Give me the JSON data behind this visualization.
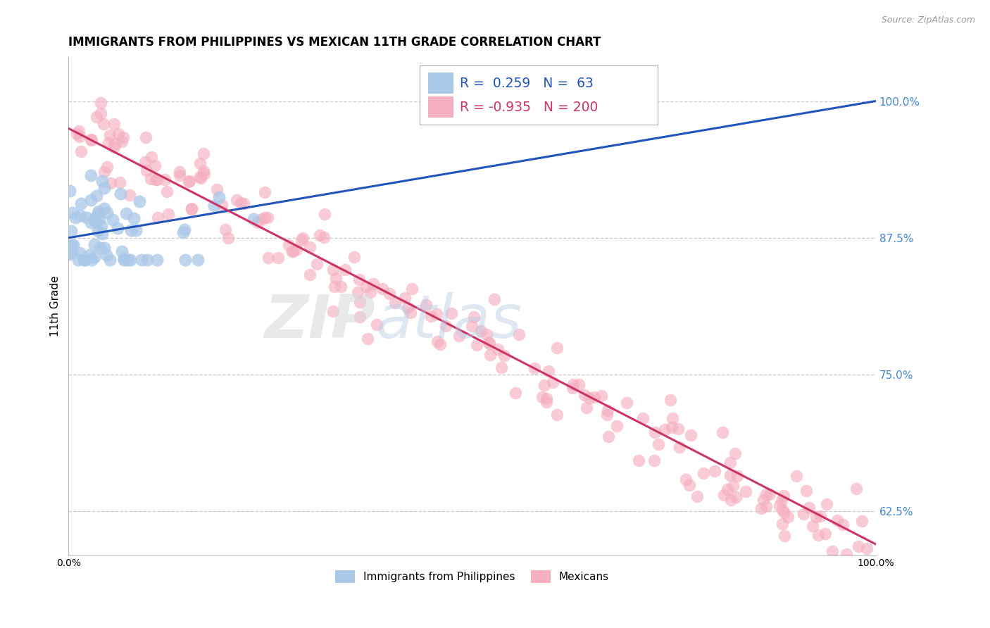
{
  "title": "IMMIGRANTS FROM PHILIPPINES VS MEXICAN 11TH GRADE CORRELATION CHART",
  "source_text": "Source: ZipAtlas.com",
  "ylabel": "11th Grade",
  "xlim": [
    0.0,
    1.0
  ],
  "ylim": [
    0.585,
    1.04
  ],
  "yticks": [
    0.625,
    0.75,
    0.875,
    1.0
  ],
  "ytick_labels": [
    "62.5%",
    "75.0%",
    "87.5%",
    "100.0%"
  ],
  "xtick_labels": [
    "0.0%",
    "100.0%"
  ],
  "r_phil": 0.259,
  "n_phil": 63,
  "r_mex": -0.935,
  "n_mex": 200,
  "color_phil": "#aac8e8",
  "color_mex": "#f5afc0",
  "line_color_phil": "#2255bb",
  "line_color_mex": "#cc3366",
  "watermark_zip": "ZIP",
  "watermark_atlas": "atlas",
  "legend_label_phil": "Immigrants from Philippines",
  "legend_label_mex": "Mexicans",
  "background_color": "#ffffff",
  "grid_color": "#cccccc",
  "title_fontsize": 12,
  "axis_label_fontsize": 11,
  "tick_label_fontsize": 10,
  "right_tick_color": "#4488cc",
  "phil_line_intercept": 0.875,
  "phil_line_slope": 0.125,
  "mex_line_intercept": 0.975,
  "mex_line_slope": -0.38
}
